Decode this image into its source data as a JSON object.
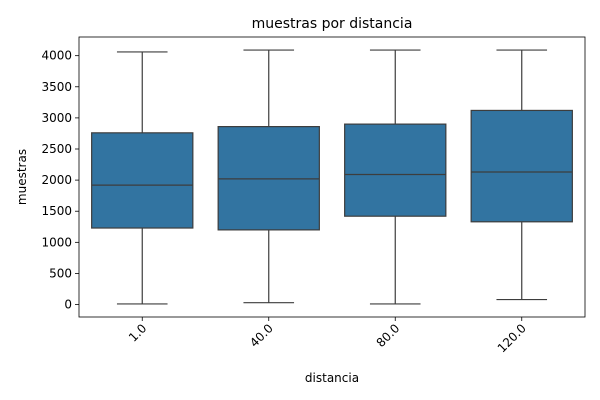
{
  "chart_data": {
    "type": "box",
    "title": "muestras por distancia",
    "xlabel": "distancia",
    "ylabel": "muestras",
    "categories": [
      "1.0",
      "40.0",
      "80.0",
      "120.0"
    ],
    "boxes": [
      {
        "min": 10,
        "q1": 1230,
        "median": 1920,
        "q3": 2760,
        "max": 4060
      },
      {
        "min": 30,
        "q1": 1200,
        "median": 2020,
        "q3": 2860,
        "max": 4090
      },
      {
        "min": 10,
        "q1": 1420,
        "median": 2090,
        "q3": 2900,
        "max": 4090
      },
      {
        "min": 80,
        "q1": 1330,
        "median": 2130,
        "q3": 3120,
        "max": 4090
      }
    ],
    "yticks": [
      0,
      500,
      1000,
      1500,
      2000,
      2500,
      3000,
      3500,
      4000
    ],
    "ylim": [
      -200,
      4300
    ],
    "grid": false,
    "colors": {
      "box_fill": "#3274a1",
      "line": "#3d3d3d"
    }
  }
}
